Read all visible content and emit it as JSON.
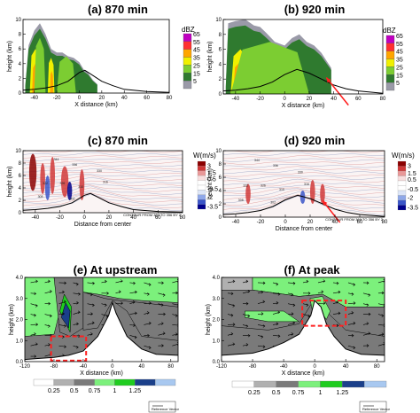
{
  "colors": {
    "dbz": [
      "#ffffff",
      "#c8c8c8",
      "#9a9aa8",
      "#2f7a2f",
      "#7ccd32",
      "#f0f000",
      "#ffa500",
      "#ff3030",
      "#c000c0",
      "#3060ff"
    ],
    "w": [
      "#00008b",
      "#3a55c8",
      "#8fa8e8",
      "#dde6f7",
      "#ffffff",
      "#f8dede",
      "#e89898",
      "#d03838",
      "#8b0000"
    ],
    "wind": [
      "#ffffff",
      "#b0b0b0",
      "#7a7a7a",
      "#7cf07c",
      "#1fcc1f",
      "#1a3f8a",
      "#a8c8f0"
    ],
    "arrow": "#ff2020",
    "box": "#ff2020"
  },
  "chart_data": [
    {
      "id": "a",
      "type": "heatmap",
      "title": "(a) 870 min",
      "ylabel": "height (km)",
      "xlabel": "X distance (km)",
      "xlim": [
        -50,
        80
      ],
      "ylim": [
        0,
        10
      ],
      "xticks": [
        -40,
        -20,
        0,
        20,
        40,
        60,
        80
      ],
      "yticks": [
        0,
        2,
        4,
        6,
        8,
        10
      ],
      "colorbar": {
        "unit": "dBZ",
        "levels": [
          65,
          55,
          45,
          35,
          25,
          15,
          5
        ]
      },
      "terrain": [
        [
          -50,
          0.4
        ],
        [
          -40,
          0.5
        ],
        [
          -30,
          0.7
        ],
        [
          -20,
          1.0
        ],
        [
          -10,
          1.6
        ],
        [
          0,
          2.8
        ],
        [
          5,
          3.1
        ],
        [
          10,
          2.6
        ],
        [
          20,
          1.6
        ],
        [
          30,
          1.0
        ],
        [
          40,
          0.5
        ],
        [
          60,
          0.2
        ],
        [
          80,
          0.1
        ]
      ],
      "echo_top": [
        [
          -48,
          1
        ],
        [
          -45,
          6.5
        ],
        [
          -40,
          8.5
        ],
        [
          -35,
          9.5
        ],
        [
          -30,
          8.0
        ],
        [
          -25,
          6.0
        ],
        [
          -20,
          5.5
        ],
        [
          -15,
          5.5
        ],
        [
          -10,
          5.0
        ],
        [
          -5,
          4.8
        ],
        [
          0,
          4.2
        ],
        [
          4,
          3.2
        ],
        [
          8,
          2.7
        ],
        [
          12,
          1.8
        ],
        [
          16,
          1.2
        ]
      ],
      "cores": [
        {
          "x0": -44,
          "x1": -34,
          "top": 6.0,
          "v": 35
        },
        {
          "x0": -42,
          "x1": -36,
          "top": 4.0,
          "v": 45
        },
        {
          "x0": -28,
          "x1": -22,
          "top": 4.8,
          "v": 35
        },
        {
          "x0": -26,
          "x1": -23,
          "top": 3.0,
          "v": 45
        },
        {
          "x0": -16,
          "x1": -8,
          "top": 4.5,
          "v": 35
        },
        {
          "x0": -14,
          "x1": -10,
          "top": 2.8,
          "v": 45
        },
        {
          "x0": -40,
          "x1": -30,
          "top": 7.5,
          "v": 25
        },
        {
          "x0": -20,
          "x1": -3,
          "top": 5.0,
          "v": 25
        }
      ]
    },
    {
      "id": "b",
      "type": "heatmap",
      "title": "(b) 920 min",
      "ylabel": "height (km)",
      "xlabel": "X distance (km)",
      "xlim": [
        -50,
        80
      ],
      "ylim": [
        0,
        10
      ],
      "xticks": [
        -40,
        -20,
        0,
        20,
        40,
        60,
        80
      ],
      "yticks": [
        0,
        2,
        4,
        6,
        8,
        10
      ],
      "colorbar": {
        "unit": "dBZ",
        "levels": [
          65,
          55,
          45,
          35,
          25,
          15,
          5
        ]
      },
      "terrain": [
        [
          -50,
          0.4
        ],
        [
          -40,
          0.5
        ],
        [
          -30,
          0.7
        ],
        [
          -20,
          1.0
        ],
        [
          -10,
          1.6
        ],
        [
          0,
          2.6
        ],
        [
          10,
          3.3
        ],
        [
          20,
          2.8
        ],
        [
          30,
          2.0
        ],
        [
          40,
          1.2
        ],
        [
          50,
          0.7
        ],
        [
          60,
          0.4
        ],
        [
          80,
          0.1
        ]
      ],
      "echo_top": [
        [
          -48,
          1
        ],
        [
          -46,
          9.5
        ],
        [
          -40,
          9.8
        ],
        [
          -32,
          10
        ],
        [
          -25,
          9.2
        ],
        [
          -20,
          9.0
        ],
        [
          -15,
          8.2
        ],
        [
          -8,
          7.0
        ],
        [
          0,
          6.5
        ],
        [
          6,
          7.5
        ],
        [
          12,
          8.0
        ],
        [
          18,
          7.0
        ],
        [
          24,
          6.5
        ],
        [
          30,
          5.5
        ],
        [
          34,
          4.5
        ],
        [
          38,
          3.5
        ]
      ],
      "cores": [
        {
          "x0": -44,
          "x1": -28,
          "top": 6.0,
          "v": 35
        },
        {
          "x0": -42,
          "x1": -32,
          "top": 4.2,
          "v": 45
        },
        {
          "x0": -22,
          "x1": -10,
          "top": 5.5,
          "v": 35
        },
        {
          "x0": -18,
          "x1": -12,
          "top": 3.8,
          "v": 45
        },
        {
          "x0": -2,
          "x1": 14,
          "top": 5.2,
          "v": 35
        },
        {
          "x0": 2,
          "x1": 10,
          "top": 3.8,
          "v": 45
        },
        {
          "x0": -44,
          "x1": 20,
          "top": 7.0,
          "v": 25
        }
      ],
      "arrow": {
        "from": [
          52,
          -1.5
        ],
        "to": [
          34,
          2.2
        ]
      }
    },
    {
      "id": "c",
      "type": "heatmap",
      "title": "(c) 870 min",
      "ylabel": "height (km)",
      "xlabel": "Distance from center",
      "xlim": [
        -50,
        80
      ],
      "ylim": [
        0,
        10
      ],
      "xticks": [
        -40,
        -20,
        0,
        20,
        40,
        60,
        80
      ],
      "yticks": [
        0,
        2,
        4,
        6,
        8,
        10
      ],
      "colorbar": {
        "unit": "W(m/s)",
        "levels": [
          3,
          1.5,
          0.5,
          -0.5,
          -2,
          -3.5
        ]
      },
      "footer": "CONTOUR FROM 300 TO 356 BY 2",
      "contour_labels": [
        "344",
        "336",
        "330",
        "322",
        "326",
        "310",
        "316",
        "308",
        "302"
      ],
      "terrain": [
        [
          -50,
          0.4
        ],
        [
          -40,
          0.5
        ],
        [
          -30,
          0.7
        ],
        [
          -20,
          1.0
        ],
        [
          -10,
          1.6
        ],
        [
          0,
          2.8
        ],
        [
          5,
          3.1
        ],
        [
          10,
          2.6
        ],
        [
          20,
          1.6
        ],
        [
          30,
          1.0
        ],
        [
          40,
          0.5
        ],
        [
          60,
          0.2
        ],
        [
          80,
          0.1
        ]
      ],
      "w_cells": [
        {
          "x": -42,
          "y": 6.5,
          "w": 3,
          "h": 3.0,
          "v": 3
        },
        {
          "x": -34,
          "y": 5.5,
          "w": 2,
          "h": 2.5,
          "v": 1.5
        },
        {
          "x": -26,
          "y": 6.0,
          "w": 2,
          "h": 3.0,
          "v": 1.5
        },
        {
          "x": -16,
          "y": 5.0,
          "w": 3,
          "h": 2.5,
          "v": 1.5
        },
        {
          "x": -12,
          "y": 3.5,
          "w": 2,
          "h": 1.5,
          "v": -3.5
        },
        {
          "x": -2,
          "y": 4.5,
          "w": 2,
          "h": 2.5,
          "v": 1.5
        },
        {
          "x": -30,
          "y": 4.0,
          "w": 2,
          "h": 2.0,
          "v": -2
        }
      ]
    },
    {
      "id": "d",
      "type": "heatmap",
      "title": "(d) 920 min",
      "ylabel": "height (km)",
      "xlabel": "Distance from center",
      "xlim": [
        -50,
        80
      ],
      "ylim": [
        0,
        10
      ],
      "xticks": [
        -40,
        -20,
        0,
        20,
        40,
        60,
        80
      ],
      "yticks": [
        0,
        2,
        4,
        6,
        8,
        10
      ],
      "colorbar": {
        "unit": "W(m/s)",
        "levels": [
          3,
          1.5,
          0.5,
          -0.5,
          -2,
          -3.5
        ]
      },
      "footer": "CONTOUR FROM 300 TO 356 BY 2",
      "contour_labels": [
        "344",
        "336",
        "330",
        "322",
        "326",
        "310",
        "316",
        "308",
        "302"
      ],
      "terrain": [
        [
          -50,
          0.4
        ],
        [
          -40,
          0.5
        ],
        [
          -30,
          0.7
        ],
        [
          -20,
          1.0
        ],
        [
          -10,
          1.6
        ],
        [
          0,
          2.6
        ],
        [
          10,
          3.3
        ],
        [
          20,
          2.8
        ],
        [
          30,
          2.0
        ],
        [
          40,
          1.2
        ],
        [
          50,
          0.7
        ],
        [
          60,
          0.4
        ],
        [
          80,
          0.1
        ]
      ],
      "w_cells": [
        {
          "x": -30,
          "y": 3.5,
          "w": 2,
          "h": 1.5,
          "v": 1.5
        },
        {
          "x": 22,
          "y": 3.8,
          "w": 2,
          "h": 1.8,
          "v": 1.5
        },
        {
          "x": 30,
          "y": 3.5,
          "w": 2,
          "h": 1.5,
          "v": 1.5
        },
        {
          "x": 14,
          "y": 3.0,
          "w": 2,
          "h": 1.0,
          "v": -2
        }
      ],
      "arrow": {
        "from": [
          44,
          -0.8
        ],
        "to": [
          30,
          2.5
        ]
      }
    },
    {
      "id": "e",
      "type": "heatmap",
      "title": "(e) At upstream",
      "ylabel": "height (km)",
      "xlabel": "X distance (km)",
      "xlim": [
        -120,
        90
      ],
      "ylim": [
        0,
        4
      ],
      "xticks": [
        -120,
        -80,
        -40,
        0,
        40,
        80
      ],
      "yticks": [
        0.0,
        1.0,
        2.0,
        3.0,
        4.0
      ],
      "colorbar": {
        "levels": [
          0.25,
          0.5,
          0.75,
          1,
          1.25
        ]
      },
      "legend_note": "Reference Vector",
      "terrain": [
        [
          -120,
          0.1
        ],
        [
          -100,
          0.15
        ],
        [
          -80,
          0.2
        ],
        [
          -60,
          0.3
        ],
        [
          -40,
          0.5
        ],
        [
          -20,
          1.2
        ],
        [
          -5,
          2.2
        ],
        [
          0,
          2.8
        ],
        [
          5,
          2.3
        ],
        [
          20,
          1.2
        ],
        [
          40,
          0.6
        ],
        [
          60,
          0.35
        ],
        [
          90,
          0.3
        ]
      ],
      "box": {
        "x0": -84,
        "x1": -36,
        "y0": 0.05,
        "y1": 1.2
      },
      "regions": [
        {
          "poly": [
            [
              -120,
              4
            ],
            [
              -80,
              4
            ],
            [
              -72,
              2.4
            ],
            [
              -80,
              1.3
            ],
            [
              -120,
              1.2
            ]
          ],
          "v": 0.75
        },
        {
          "poly": [
            [
              -80,
              4
            ],
            [
              -40,
              4
            ],
            [
              -40,
              1.6
            ],
            [
              -58,
              1.2
            ],
            [
              -72,
              1.4
            ]
          ],
          "v": 0.5
        },
        {
          "poly": [
            [
              -72,
              2.4
            ],
            [
              -58,
              1.4
            ],
            [
              -56,
              2.6
            ],
            [
              -66,
              3.2
            ]
          ],
          "v": 1
        },
        {
          "poly": [
            [
              -70,
              2.1
            ],
            [
              -60,
              1.6
            ],
            [
              -58,
              2.4
            ],
            [
              -64,
              2.8
            ]
          ],
          "v": 1.25
        },
        {
          "poly": [
            [
              -40,
              4
            ],
            [
              90,
              4
            ],
            [
              90,
              2.8
            ],
            [
              40,
              2.9
            ],
            [
              10,
              3.0
            ],
            [
              -20,
              3.2
            ],
            [
              -40,
              3.3
            ]
          ],
          "v": 0.75
        },
        {
          "poly": [
            [
              -40,
              3.3
            ],
            [
              -10,
              3.0
            ],
            [
              10,
              2.9
            ],
            [
              40,
              2.8
            ],
            [
              90,
              2.6
            ],
            [
              90,
              1.0
            ],
            [
              40,
              1.2
            ],
            [
              20,
              2.4
            ],
            [
              0,
              2.9
            ],
            [
              -20,
              1.6
            ],
            [
              -40,
              1.5
            ]
          ],
          "v": 0.5
        }
      ]
    },
    {
      "id": "f",
      "type": "heatmap",
      "title": "(f) At peak",
      "ylabel": "height (km)",
      "xlabel": "X distance (km)",
      "xlim": [
        -120,
        90
      ],
      "ylim": [
        0,
        4
      ],
      "xticks": [
        -120,
        -80,
        -40,
        0,
        40,
        80
      ],
      "yticks": [
        0.0,
        1.0,
        2.0,
        3.0,
        4.0
      ],
      "colorbar": {
        "levels": [
          0.25,
          0.5,
          0.75,
          1,
          1.25
        ]
      },
      "legend_note": "Reference Vector",
      "terrain": [
        [
          -120,
          0.3
        ],
        [
          -80,
          0.4
        ],
        [
          -60,
          0.6
        ],
        [
          -40,
          0.9
        ],
        [
          -20,
          1.3
        ],
        [
          -5,
          2.2
        ],
        [
          0,
          2.9
        ],
        [
          8,
          2.6
        ],
        [
          15,
          1.8
        ],
        [
          25,
          1.2
        ],
        [
          40,
          0.6
        ],
        [
          60,
          0.35
        ],
        [
          90,
          0.3
        ]
      ],
      "box": {
        "x0": -16,
        "x1": 40,
        "y0": 1.7,
        "y1": 2.9
      },
      "regions": [
        {
          "poly": [
            [
              -120,
              4
            ],
            [
              -80,
              4
            ],
            [
              -80,
              3.2
            ],
            [
              -120,
              3.4
            ]
          ],
          "v": 0.25
        },
        {
          "poly": [
            [
              -80,
              4
            ],
            [
              90,
              4
            ],
            [
              90,
              2.6
            ],
            [
              40,
              2.6
            ],
            [
              10,
              3.2
            ],
            [
              -20,
              3.1
            ],
            [
              -60,
              3.3
            ],
            [
              -80,
              3.4
            ]
          ],
          "v": 0.75
        },
        {
          "poly": [
            [
              -120,
              3.4
            ],
            [
              -80,
              3.4
            ],
            [
              -60,
              3.3
            ],
            [
              -20,
              3.1
            ],
            [
              10,
              3.2
            ],
            [
              40,
              2.6
            ],
            [
              90,
              2.6
            ],
            [
              90,
              1.2
            ],
            [
              40,
              1.5
            ],
            [
              20,
              2.2
            ],
            [
              0,
              3.0
            ],
            [
              -20,
              1.8
            ],
            [
              -60,
              1.5
            ],
            [
              -120,
              1.7
            ]
          ],
          "v": 0.5
        },
        {
          "poly": [
            [
              -90,
              2.4
            ],
            [
              -40,
              2.4
            ],
            [
              -20,
              1.9
            ],
            [
              -60,
              1.9
            ],
            [
              -90,
              2.1
            ]
          ],
          "v": 0.75
        },
        {
          "poly": [
            [
              -6,
              3.0
            ],
            [
              10,
              3.1
            ],
            [
              20,
              2.4
            ],
            [
              15,
              2.0
            ],
            [
              4,
              2.6
            ],
            [
              -2,
              2.2
            ]
          ],
          "v": 0.75
        }
      ]
    }
  ]
}
